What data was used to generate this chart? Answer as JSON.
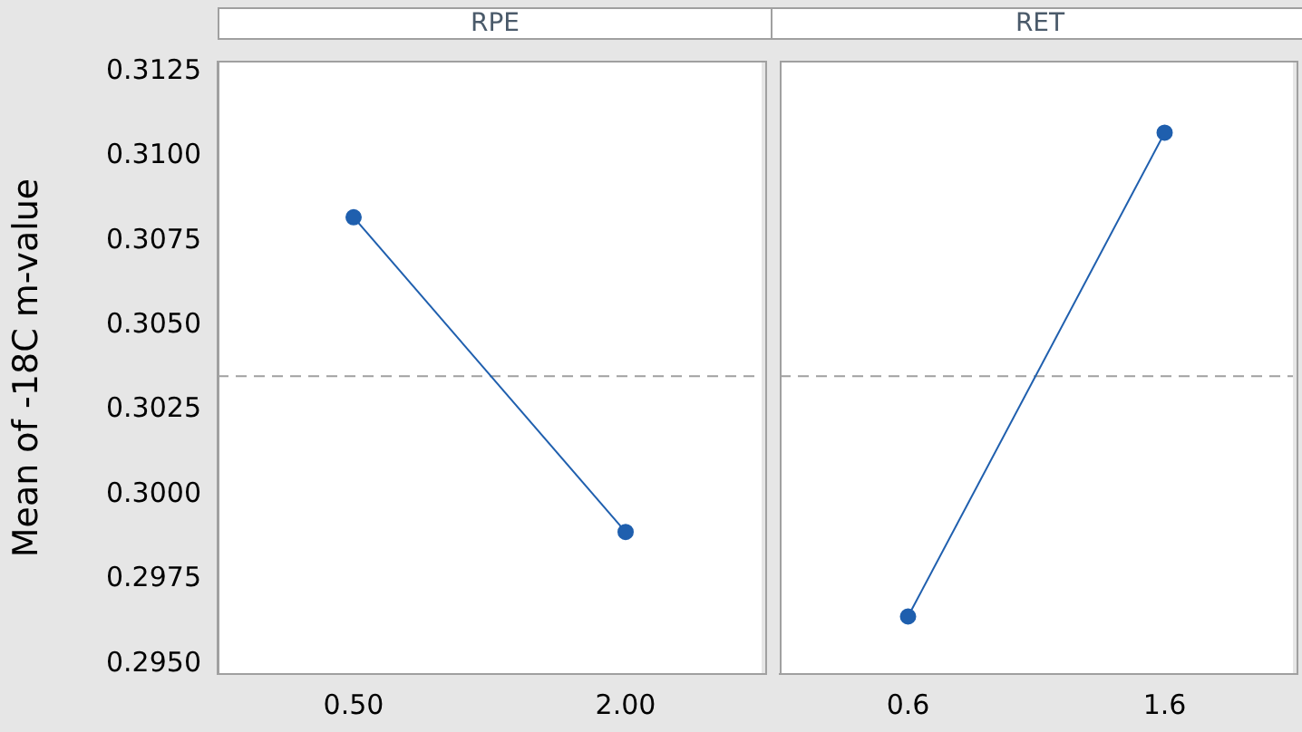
{
  "chart_data": [
    {
      "type": "line",
      "title": "RPE",
      "ylabel": "Mean of -18C m-value",
      "categories": [
        "0.50",
        "2.00"
      ],
      "series": [
        {
          "color": "#1f5fae",
          "values": [
            0.3082,
            0.2989
          ]
        }
      ],
      "ylim": [
        0.2947,
        0.3128
      ],
      "yticks": [
        {
          "value": 0.295,
          "label": "0.2950"
        },
        0.2975,
        {
          "value": 0.3,
          "label": "0.3000"
        },
        0.3025,
        {
          "value": 0.305,
          "label": "0.3050"
        },
        0.3075,
        {
          "value": 0.31,
          "label": "0.3100"
        },
        0.3125
      ],
      "ref_lines": [
        {
          "axis": "y",
          "value": 0.3035,
          "color": "#a0a0a0",
          "line_style": "dashed"
        }
      ],
      "marker": "circle",
      "grid": false,
      "legend": false
    },
    {
      "type": "line",
      "title": "RET",
      "categories": [
        "0.6",
        "1.6"
      ],
      "series": [
        {
          "color": "#1f5fae",
          "values": [
            0.2964,
            0.3107
          ]
        }
      ],
      "ylim": [
        0.2947,
        0.3128
      ],
      "ref_lines": [
        {
          "axis": "y",
          "value": 0.3035,
          "color": "#a0a0a0",
          "line_style": "dashed"
        }
      ],
      "marker": "circle",
      "grid": false,
      "legend": false,
      "tick_labels": "x"
    }
  ]
}
